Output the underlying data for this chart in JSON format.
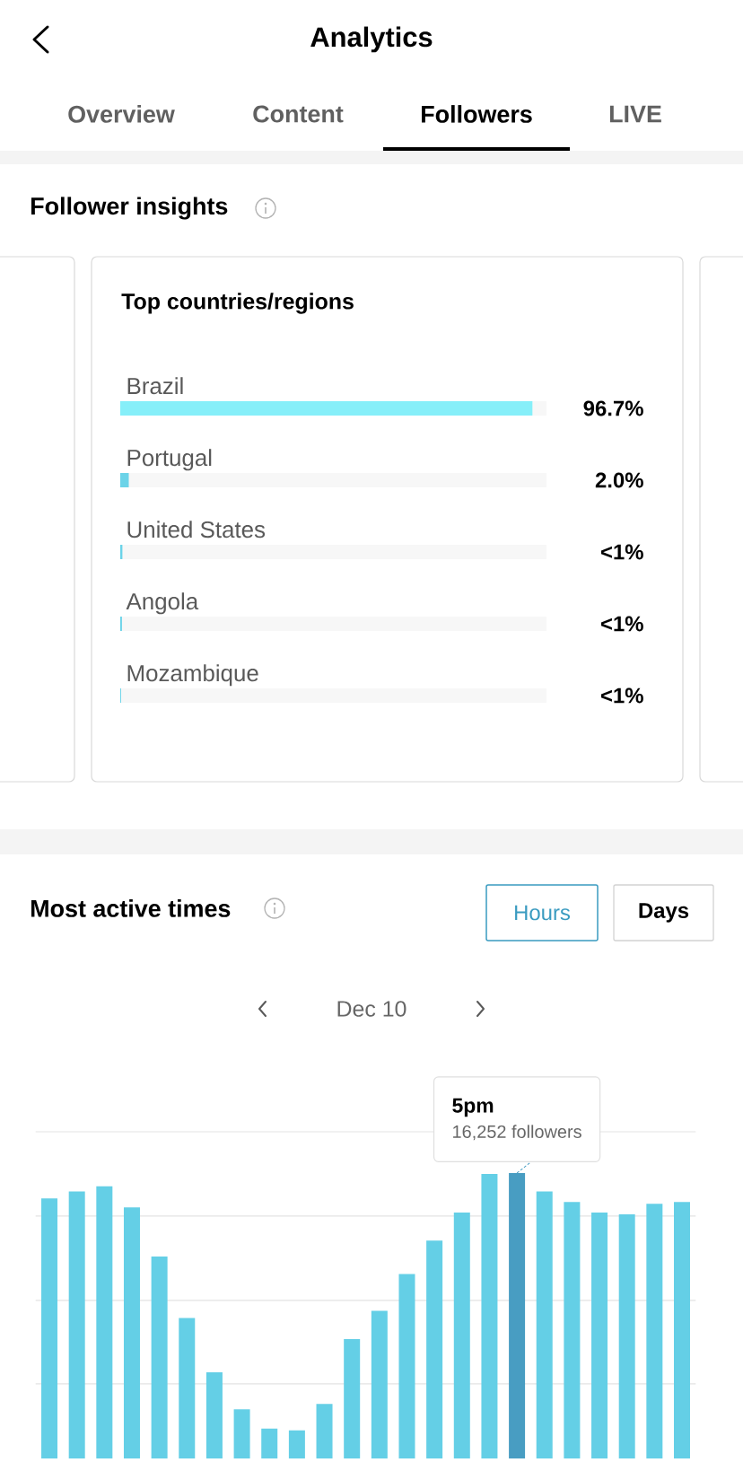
{
  "chart_data": [
    {
      "type": "other",
      "title": "Analytics",
      "annotations": [
        "Overview",
        "Content",
        "Followers",
        "LIVE",
        "Follower insights"
      ]
    },
    {
      "type": "bar",
      "orientation": "horizontal",
      "title": "Top countries/regions",
      "categories": [
        "Brazil",
        "Portugal",
        "United States",
        "Angola",
        "Mozambique"
      ],
      "values": [
        96.7,
        2.0,
        0.5,
        0.4,
        0.2
      ],
      "value_labels": [
        "96.7%",
        "2.0%",
        "<1%",
        "<1%",
        "<1%"
      ],
      "colors": [
        "#86eff9",
        "#6bd3e8",
        "#6bd3e8",
        "#6bd3e8",
        "#6bd3e8"
      ],
      "xlim": [
        0,
        100
      ],
      "tick_labels": "y"
    },
    {
      "type": "bar",
      "title": "Most active times",
      "subtitle": "Dec 10",
      "annotations": [
        "Hours",
        "Days",
        "5pm"
      ],
      "grid": "y",
      "tick_labels": false,
      "ylim": [
        0,
        18600
      ],
      "value_labels": [
        null,
        null,
        null,
        null,
        null,
        null,
        null,
        null,
        null,
        null,
        null,
        null,
        null,
        null,
        null,
        null,
        null,
        "16,252 followers",
        null,
        null,
        null,
        null,
        null,
        null
      ],
      "categories": [
        null,
        null,
        null,
        null,
        null,
        null,
        null,
        null,
        null,
        null,
        null,
        null,
        null,
        null,
        null,
        null,
        null,
        null,
        null,
        null,
        null,
        null,
        null,
        null
      ],
      "values": [
        14800,
        15200,
        15500,
        14300,
        11500,
        8000,
        4900,
        2800,
        1700,
        1600,
        3100,
        6800,
        8400,
        10500,
        12400,
        14000,
        16200,
        16252,
        15200,
        14600,
        14000,
        13900,
        14500,
        14600
      ],
      "colors": [
        "#64cfe6",
        "#64cfe6",
        "#64cfe6",
        "#64cfe6",
        "#64cfe6",
        "#64cfe6",
        "#64cfe6",
        "#64cfe6",
        "#64cfe6",
        "#64cfe6",
        "#64cfe6",
        "#64cfe6",
        "#64cfe6",
        "#64cfe6",
        "#64cfe6",
        "#64cfe6",
        "#64cfe6",
        "#489dc2",
        "#64cfe6",
        "#64cfe6",
        "#64cfe6",
        "#64cfe6",
        "#64cfe6",
        "#64cfe6"
      ],
      "yticks": [
        {
          "value": 4250,
          "label": null
        },
        {
          "value": 9000,
          "label": null
        },
        {
          "value": 13800,
          "label": null
        },
        {
          "value": 18600,
          "label": null
        }
      ]
    }
  ]
}
